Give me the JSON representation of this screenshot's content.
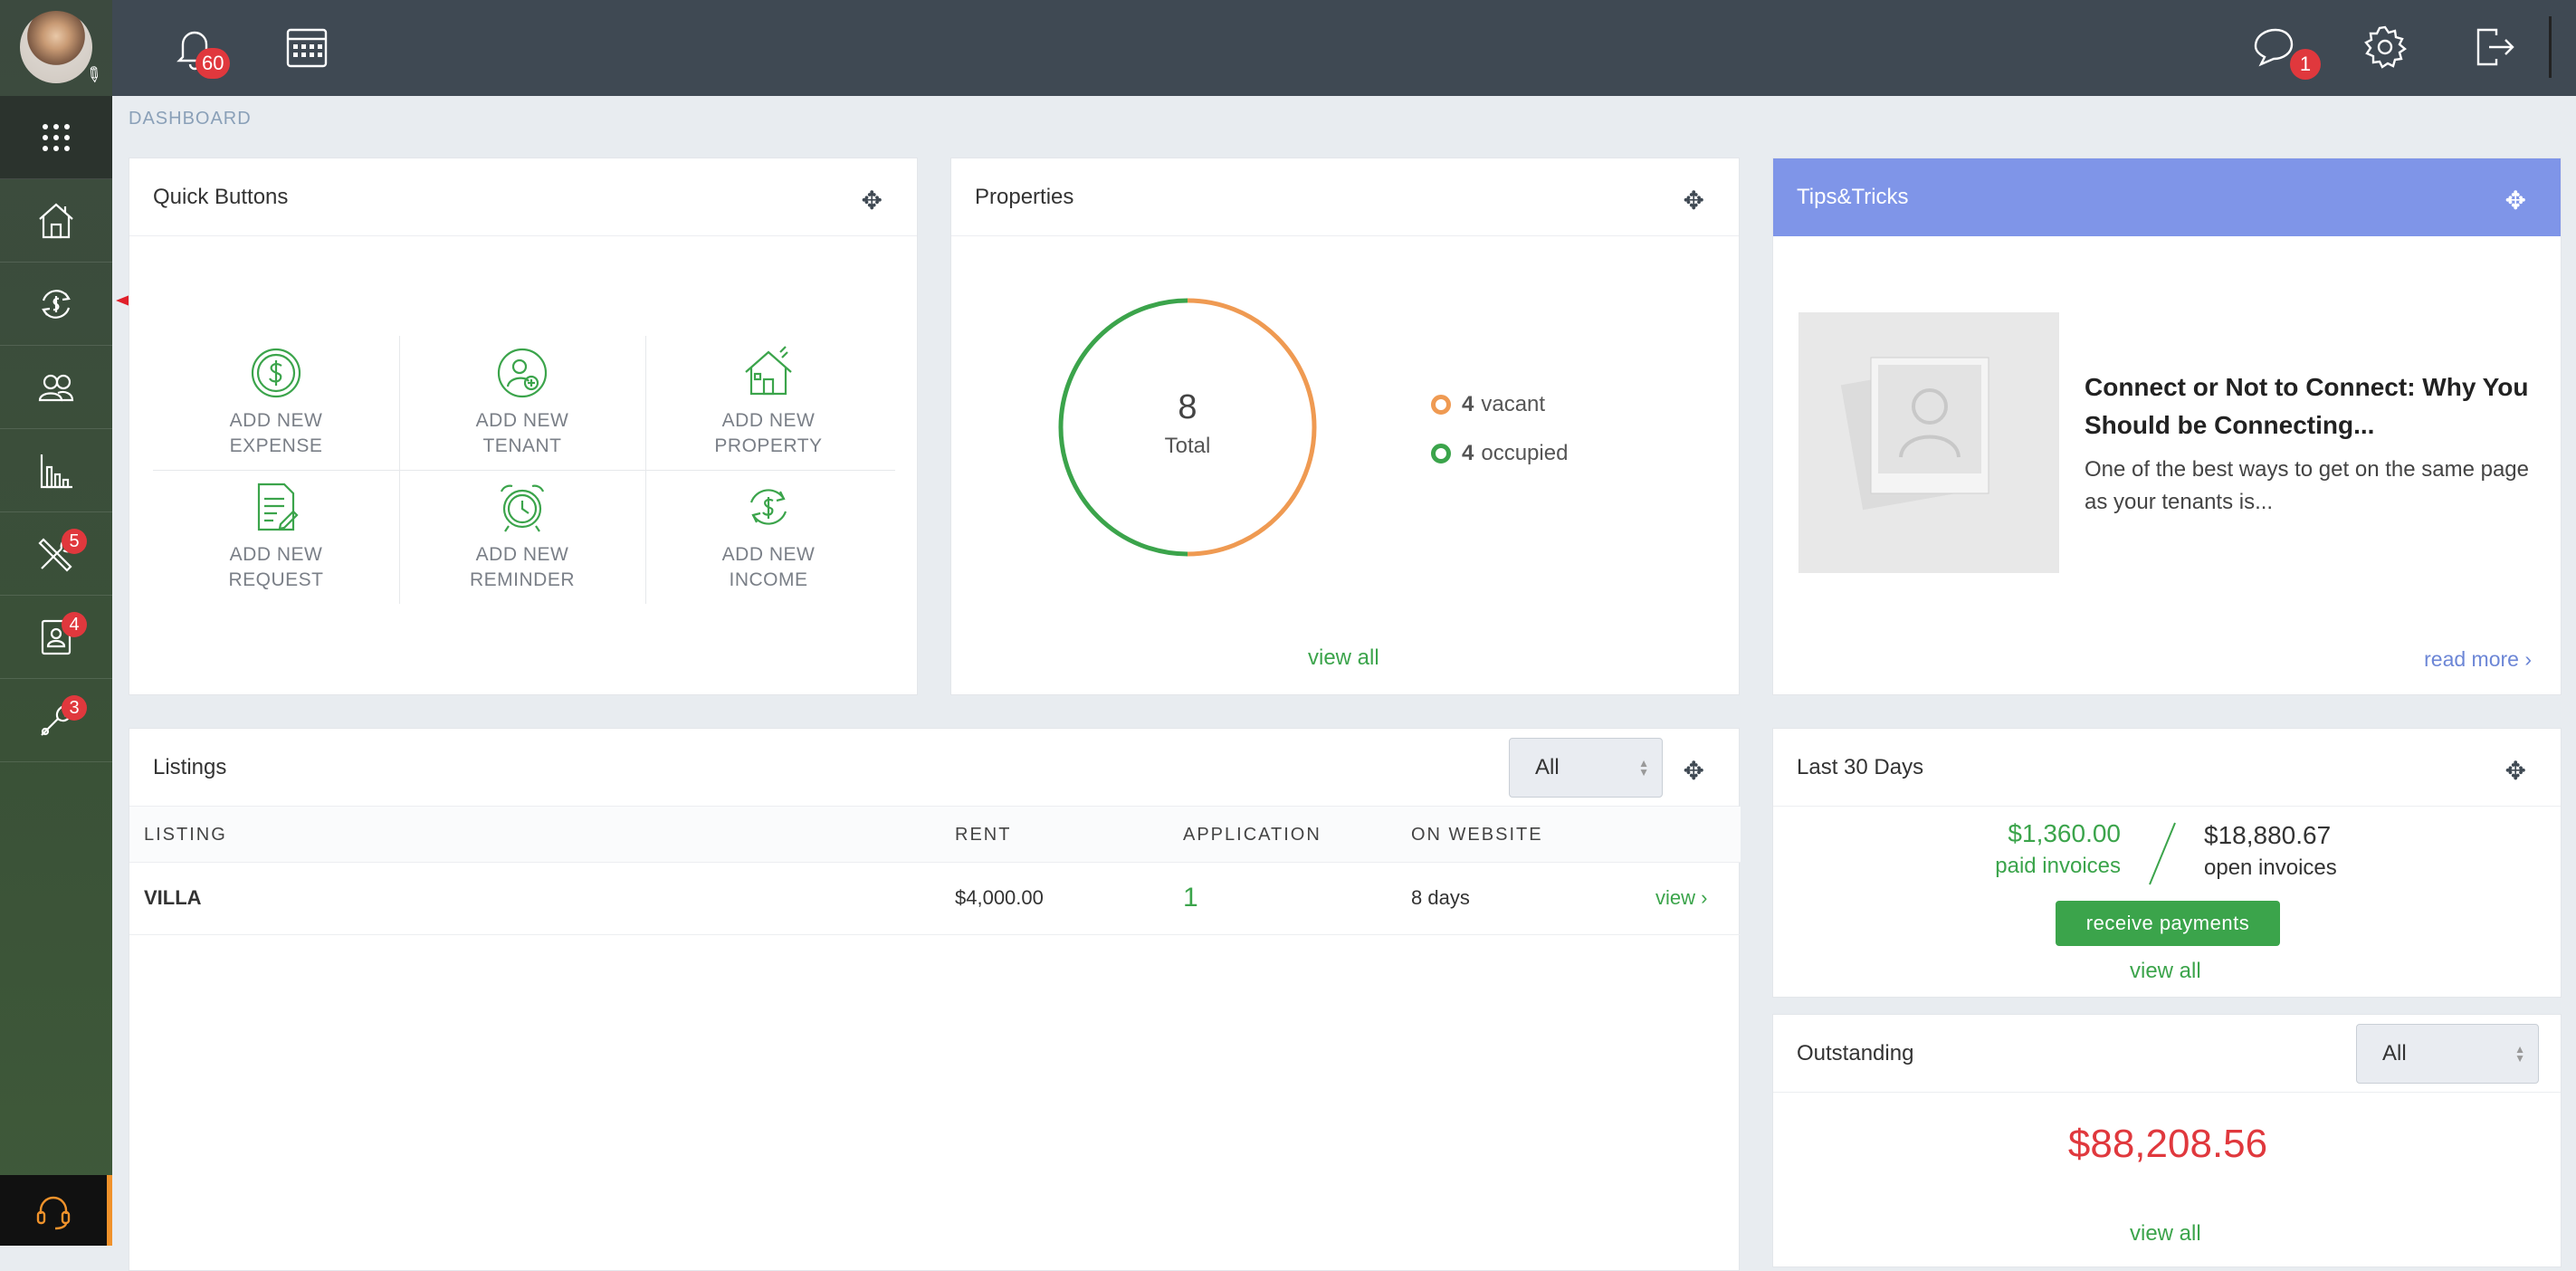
{
  "topbar": {
    "notifications_count": "60",
    "messages_count": "1"
  },
  "sidebar": {
    "badges": {
      "maintenance": "5",
      "tenants_screening": "4",
      "tools": "3"
    }
  },
  "breadcrumb": "DASHBOARD",
  "quick_buttons": {
    "title": "Quick Buttons",
    "items": [
      {
        "line1": "ADD NEW",
        "line2": "EXPENSE"
      },
      {
        "line1": "ADD NEW",
        "line2": "TENANT"
      },
      {
        "line1": "ADD NEW",
        "line2": "PROPERTY"
      },
      {
        "line1": "ADD NEW",
        "line2": "REQUEST"
      },
      {
        "line1": "ADD NEW",
        "line2": "REMINDER"
      },
      {
        "line1": "ADD NEW",
        "line2": "INCOME"
      }
    ]
  },
  "properties": {
    "title": "Properties",
    "total": "8",
    "total_label": "Total",
    "vacant": "4",
    "vacant_label": "vacant",
    "occupied": "4",
    "occupied_label": "occupied",
    "view_all": "view all",
    "colors": {
      "vacant": "#ef9a52",
      "occupied": "#3ba44b"
    }
  },
  "tips": {
    "title": "Tips&Tricks",
    "headline": "Connect or Not to Connect: Why You Should be Connecting...",
    "excerpt": "One of the best ways to get on the same page as your tenants is...",
    "read_more": "read more ›"
  },
  "listings": {
    "title": "Listings",
    "filter": "All",
    "columns": [
      "LISTING",
      "RENT",
      "APPLICATION",
      "ON WEBSITE"
    ],
    "rows": [
      {
        "listing": "VILLA",
        "rent": "$4,000.00",
        "application": "1",
        "on_website": "8 days",
        "action": "view"
      }
    ]
  },
  "last30": {
    "title": "Last 30 Days",
    "paid_amount": "$1,360.00",
    "paid_label": "paid invoices",
    "open_amount": "$18,880.67",
    "open_label": "open invoices",
    "button": "receive payments",
    "view_all": "view all"
  },
  "outstanding": {
    "title": "Outstanding",
    "filter": "All",
    "amount": "$88,208.56",
    "view_all": "view all"
  }
}
